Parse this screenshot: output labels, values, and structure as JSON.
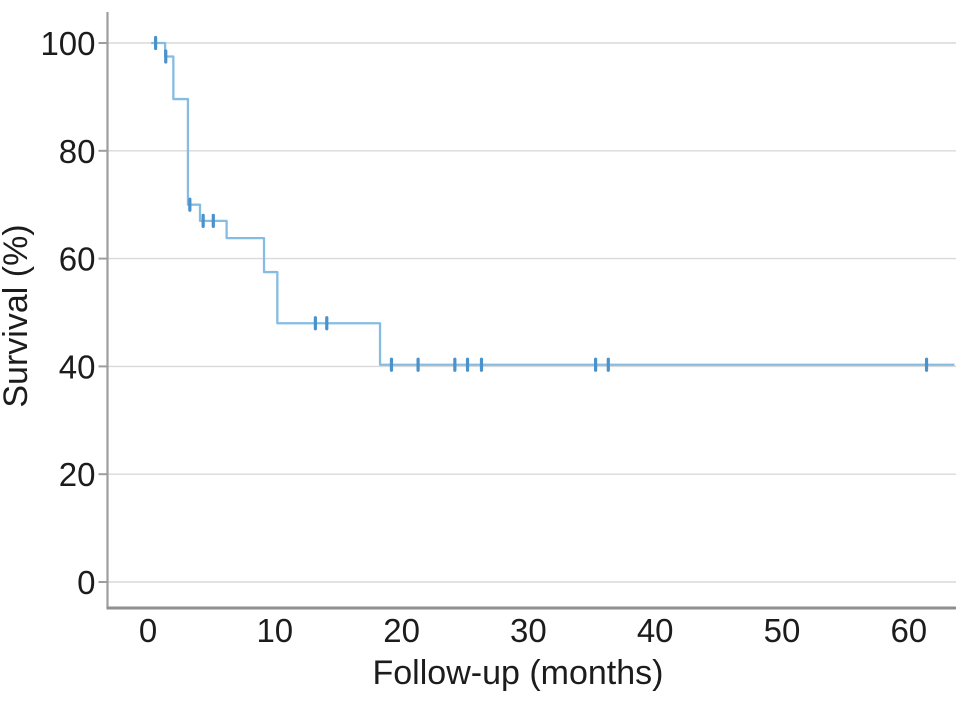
{
  "figure": {
    "background": "#ffffff"
  },
  "chart_data": {
    "type": "line",
    "subtype": "kaplan-meier-step",
    "title": "",
    "xlabel": "Follow-up (months)",
    "ylabel": "Survival (%)",
    "x_ticks": [
      0,
      10,
      20,
      30,
      40,
      50,
      60
    ],
    "y_ticks": [
      0,
      20,
      40,
      60,
      80,
      100
    ],
    "xlim": [
      -3.2,
      63.9
    ],
    "ylim": [
      -5,
      105.7
    ],
    "grid": "horizontal-only",
    "legend": "none",
    "series": [
      {
        "name": "survival",
        "start": {
          "t": 0.25,
          "s": 100
        },
        "steps": [
          {
            "t": 0.25,
            "s": 100
          },
          {
            "t": 1.35,
            "s": 97.5
          },
          {
            "t": 2.0,
            "s": 89.6
          },
          {
            "t": 3.15,
            "s": 70.0
          },
          {
            "t": 4.1,
            "s": 67.0
          },
          {
            "t": 6.2,
            "s": 63.8
          },
          {
            "t": 9.15,
            "s": 57.5
          },
          {
            "t": 10.2,
            "s": 48.0
          },
          {
            "t": 18.3,
            "s": 40.3
          }
        ],
        "end_t": 63.6,
        "censor_marks": [
          {
            "t": 0.6,
            "s": 100
          },
          {
            "t": 1.4,
            "s": 97.5
          },
          {
            "t": 3.3,
            "s": 70.0
          },
          {
            "t": 4.35,
            "s": 67.0
          },
          {
            "t": 5.15,
            "s": 67.0
          },
          {
            "t": 13.2,
            "s": 48.0
          },
          {
            "t": 14.1,
            "s": 48.0
          },
          {
            "t": 19.2,
            "s": 40.3
          },
          {
            "t": 21.3,
            "s": 40.3
          },
          {
            "t": 24.2,
            "s": 40.3
          },
          {
            "t": 25.2,
            "s": 40.3
          },
          {
            "t": 26.3,
            "s": 40.3
          },
          {
            "t": 35.3,
            "s": 40.3
          },
          {
            "t": 36.3,
            "s": 40.3
          },
          {
            "t": 61.4,
            "s": 40.3
          }
        ]
      }
    ],
    "colors": {
      "line": "#85bce2",
      "censor": "#4a92cc",
      "grid": "#d9d9d9",
      "axis": "#9e9e9e",
      "baseline": "#8f8f8f",
      "text": "#1c1c1c"
    }
  }
}
